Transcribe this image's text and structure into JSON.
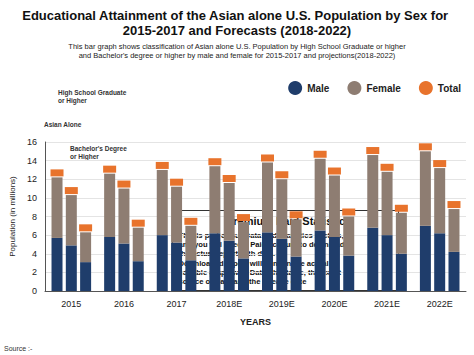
{
  "chart_data": {
    "type": "bar",
    "stacked": true,
    "title": "Educational Attainment of the Asian alone U.S. Population by Sex for 2015-2017 and Forecasts (2018-2022)",
    "subtitle": [
      "This bar graph shows classification of Asian alone U.S. Population by High School Graduate or higher",
      "and Bachelor's degree or higher by male and female for 2015-2017 and projections(2018-2022)"
    ],
    "x_label": "YEARS",
    "y_label": "Population (in millions)",
    "categories": [
      "2015",
      "2016",
      "2017",
      "2018E",
      "2019E",
      "2020E",
      "2021E",
      "2022E"
    ],
    "groups": [
      "Asian Alone",
      "High School Graduate or Higher",
      "Bachelor's Degree or Higher"
    ],
    "series": [
      {
        "name": "Male",
        "color": "#1f3d6b",
        "type": "bar",
        "values": [
          [
            5.7,
            5.8,
            6.0,
            6.2,
            6.3,
            6.5,
            6.8,
            7.0
          ],
          [
            4.9,
            5.1,
            5.2,
            5.4,
            5.6,
            5.8,
            6.0,
            6.2
          ],
          [
            3.1,
            3.2,
            3.3,
            3.5,
            3.7,
            3.8,
            4.0,
            4.2
          ]
        ]
      },
      {
        "name": "Female",
        "color": "#8e7d72",
        "type": "bar",
        "values": [
          [
            6.5,
            6.8,
            7.0,
            7.2,
            7.5,
            7.7,
            7.8,
            8.0
          ],
          [
            5.4,
            5.9,
            6.0,
            6.2,
            6.4,
            6.6,
            6.8,
            7.0
          ],
          [
            3.2,
            3.6,
            3.7,
            3.9,
            4.0,
            4.2,
            4.4,
            4.6
          ]
        ]
      },
      {
        "name": "Total",
        "color": "#e8732c",
        "type": "scatter",
        "marker": "rect",
        "values": [
          [
            12.2,
            12.6,
            13.0,
            13.4,
            13.8,
            14.2,
            14.6,
            15.0
          ],
          [
            10.3,
            11.0,
            11.2,
            11.6,
            12.0,
            12.4,
            12.8,
            13.2
          ],
          [
            6.3,
            6.8,
            7.0,
            7.4,
            7.7,
            8.0,
            8.4,
            8.8
          ]
        ]
      }
    ],
    "ylim": [
      0,
      16
    ],
    "yticks": [
      0,
      2,
      4,
      6,
      8,
      10,
      12,
      14,
      16
    ],
    "grid": true,
    "legend": "top right",
    "box_title": "Premium Paid Statistic",
    "box_text": [
      "This is part of our Data and Statistics section,",
      "and you will need a Paid account to download",
      "the actual report with data.",
      "Downloaded report will contain the actual",
      "editable graph with Data, this table, the exact",
      "source of Data and the release date"
    ],
    "source": "Source :-"
  }
}
